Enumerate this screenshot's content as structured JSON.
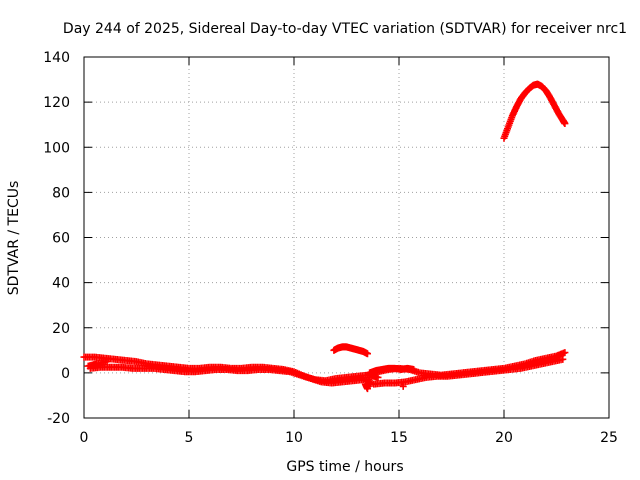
{
  "chart_data": {
    "type": "scatter",
    "title": "Day 244 of 2025, Sidereal Day-to-day VTEC variation (SDTVAR) for receiver nrc1",
    "xlabel": "GPS time / hours",
    "ylabel": "SDTVAR / TECUs",
    "xlim": [
      0,
      25
    ],
    "ylim": [
      -20,
      140
    ],
    "x_ticks": [
      0,
      5,
      10,
      15,
      20,
      25
    ],
    "y_ticks": [
      -20,
      0,
      20,
      40,
      60,
      80,
      100,
      120,
      140
    ],
    "grid": true,
    "marker": "+",
    "series_color": "#ff0000",
    "series": [
      {
        "name": "upper-band",
        "x": [
          0.0,
          0.5,
          1.0,
          1.5,
          2.0,
          2.5,
          3.0,
          3.5,
          4.0,
          4.5,
          5.0,
          5.5,
          6.0,
          6.5,
          7.0,
          7.5,
          8.0,
          8.5,
          9.0,
          9.5,
          10.0,
          10.5,
          11.0,
          11.5,
          12.0,
          12.5,
          13.0,
          13.5,
          14.0,
          14.5,
          15.0,
          15.5,
          16.0,
          16.5,
          17.0,
          17.5,
          18.0,
          18.5,
          19.0,
          19.5,
          20.0,
          20.5,
          21.0,
          21.5,
          22.0,
          22.5,
          22.9
        ],
        "y": [
          7,
          7,
          6.5,
          6,
          5.5,
          5,
          4,
          3.5,
          3,
          2.5,
          2,
          2,
          2.5,
          2.5,
          2,
          2,
          2.5,
          2.5,
          2,
          1.5,
          0.5,
          -1.5,
          -3,
          -3.5,
          -2.5,
          -2,
          -1.5,
          -1,
          0.5,
          1.5,
          2,
          1.5,
          0,
          -0.5,
          -1,
          -0.5,
          0,
          0.5,
          1,
          1.5,
          2,
          3,
          4,
          5.5,
          6.5,
          7.5,
          9
        ]
      },
      {
        "name": "lower-band",
        "x": [
          0.3,
          0.8,
          1.3,
          1.8,
          2.3,
          2.8,
          3.3,
          3.8,
          4.3,
          4.8,
          5.3,
          5.8,
          6.3,
          6.8,
          7.3,
          7.8,
          8.3,
          8.8,
          9.3,
          9.8,
          10.3,
          10.8,
          11.3,
          11.8,
          12.3,
          12.8,
          13.3,
          13.8,
          14.3,
          14.8,
          15.3,
          15.8,
          16.3,
          16.8,
          17.3,
          17.8,
          18.3,
          18.8,
          19.3,
          19.8,
          20.3,
          20.8,
          21.3,
          21.8,
          22.3,
          22.8
        ],
        "y": [
          2,
          2.5,
          2.5,
          2.5,
          2,
          2,
          2,
          1.5,
          1,
          0.5,
          0.5,
          1,
          1.5,
          1.5,
          1,
          1,
          1.5,
          1.5,
          1,
          0.5,
          -1,
          -2.5,
          -4,
          -4.5,
          -4,
          -3.5,
          -3,
          -5,
          -4.5,
          -4.5,
          -4,
          -3,
          -2,
          -1.5,
          -1.5,
          -1,
          -0.5,
          0,
          0.5,
          1,
          1.5,
          2,
          3,
          4,
          5,
          6
        ]
      },
      {
        "name": "midday-arc",
        "x": [
          11.9,
          12.1,
          12.3,
          12.5,
          12.7,
          12.9,
          13.1,
          13.3,
          13.5
        ],
        "y": [
          10,
          11,
          11.5,
          11.5,
          11,
          10.5,
          10,
          9.5,
          8.5
        ]
      },
      {
        "name": "afternoon-segment",
        "x": [
          13.6,
          13.9,
          14.2,
          14.5,
          14.8,
          15.1,
          15.4,
          15.7
        ],
        "y": [
          0,
          1,
          1.5,
          2,
          2,
          1.5,
          2,
          1.5
        ]
      },
      {
        "name": "scattered-points",
        "x": [
          0.2,
          0.6,
          1.1,
          13.4,
          13.5,
          13.6,
          14.0,
          15.2
        ],
        "y": [
          3,
          4,
          5,
          -5,
          -7,
          -1,
          -2,
          -6
        ]
      },
      {
        "name": "late-arc",
        "x": [
          20.0,
          20.2,
          20.4,
          20.6,
          20.8,
          21.0,
          21.2,
          21.4,
          21.6,
          21.8,
          22.0,
          22.2,
          22.4,
          22.6,
          22.8,
          22.9
        ],
        "y": [
          104,
          109,
          114,
          118,
          121.5,
          124,
          126,
          127.5,
          128,
          127,
          125,
          122,
          118.5,
          115,
          112,
          110.5
        ]
      }
    ]
  }
}
